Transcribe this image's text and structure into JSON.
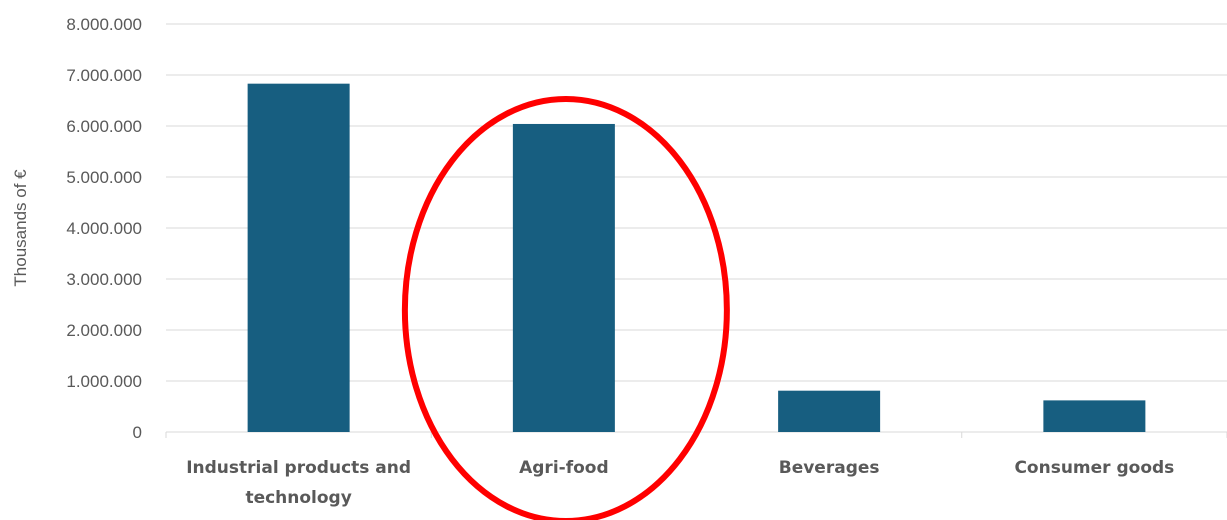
{
  "chart_data": {
    "type": "bar",
    "categories": [
      [
        "Industrial products and",
        "technology"
      ],
      [
        "Agri-food"
      ],
      [
        "Beverages"
      ],
      [
        "Consumer goods"
      ]
    ],
    "values": [
      6830000,
      6040000,
      810000,
      620000
    ],
    "ylabel": "Thousands of €",
    "ylim": [
      0,
      8000000
    ],
    "yticks": [
      "0",
      "1.000.000",
      "2.000.000",
      "3.000.000",
      "4.000.000",
      "5.000.000",
      "6.000.000",
      "7.000.000",
      "8.000.000"
    ],
    "grid": true,
    "legend": "none",
    "highlight": {
      "shape": "ellipse",
      "category_index": 1
    }
  },
  "colors": {
    "bar": "#175E80",
    "highlight": "#FF0000",
    "grid": "#D9D9D9",
    "text": "#595959"
  }
}
